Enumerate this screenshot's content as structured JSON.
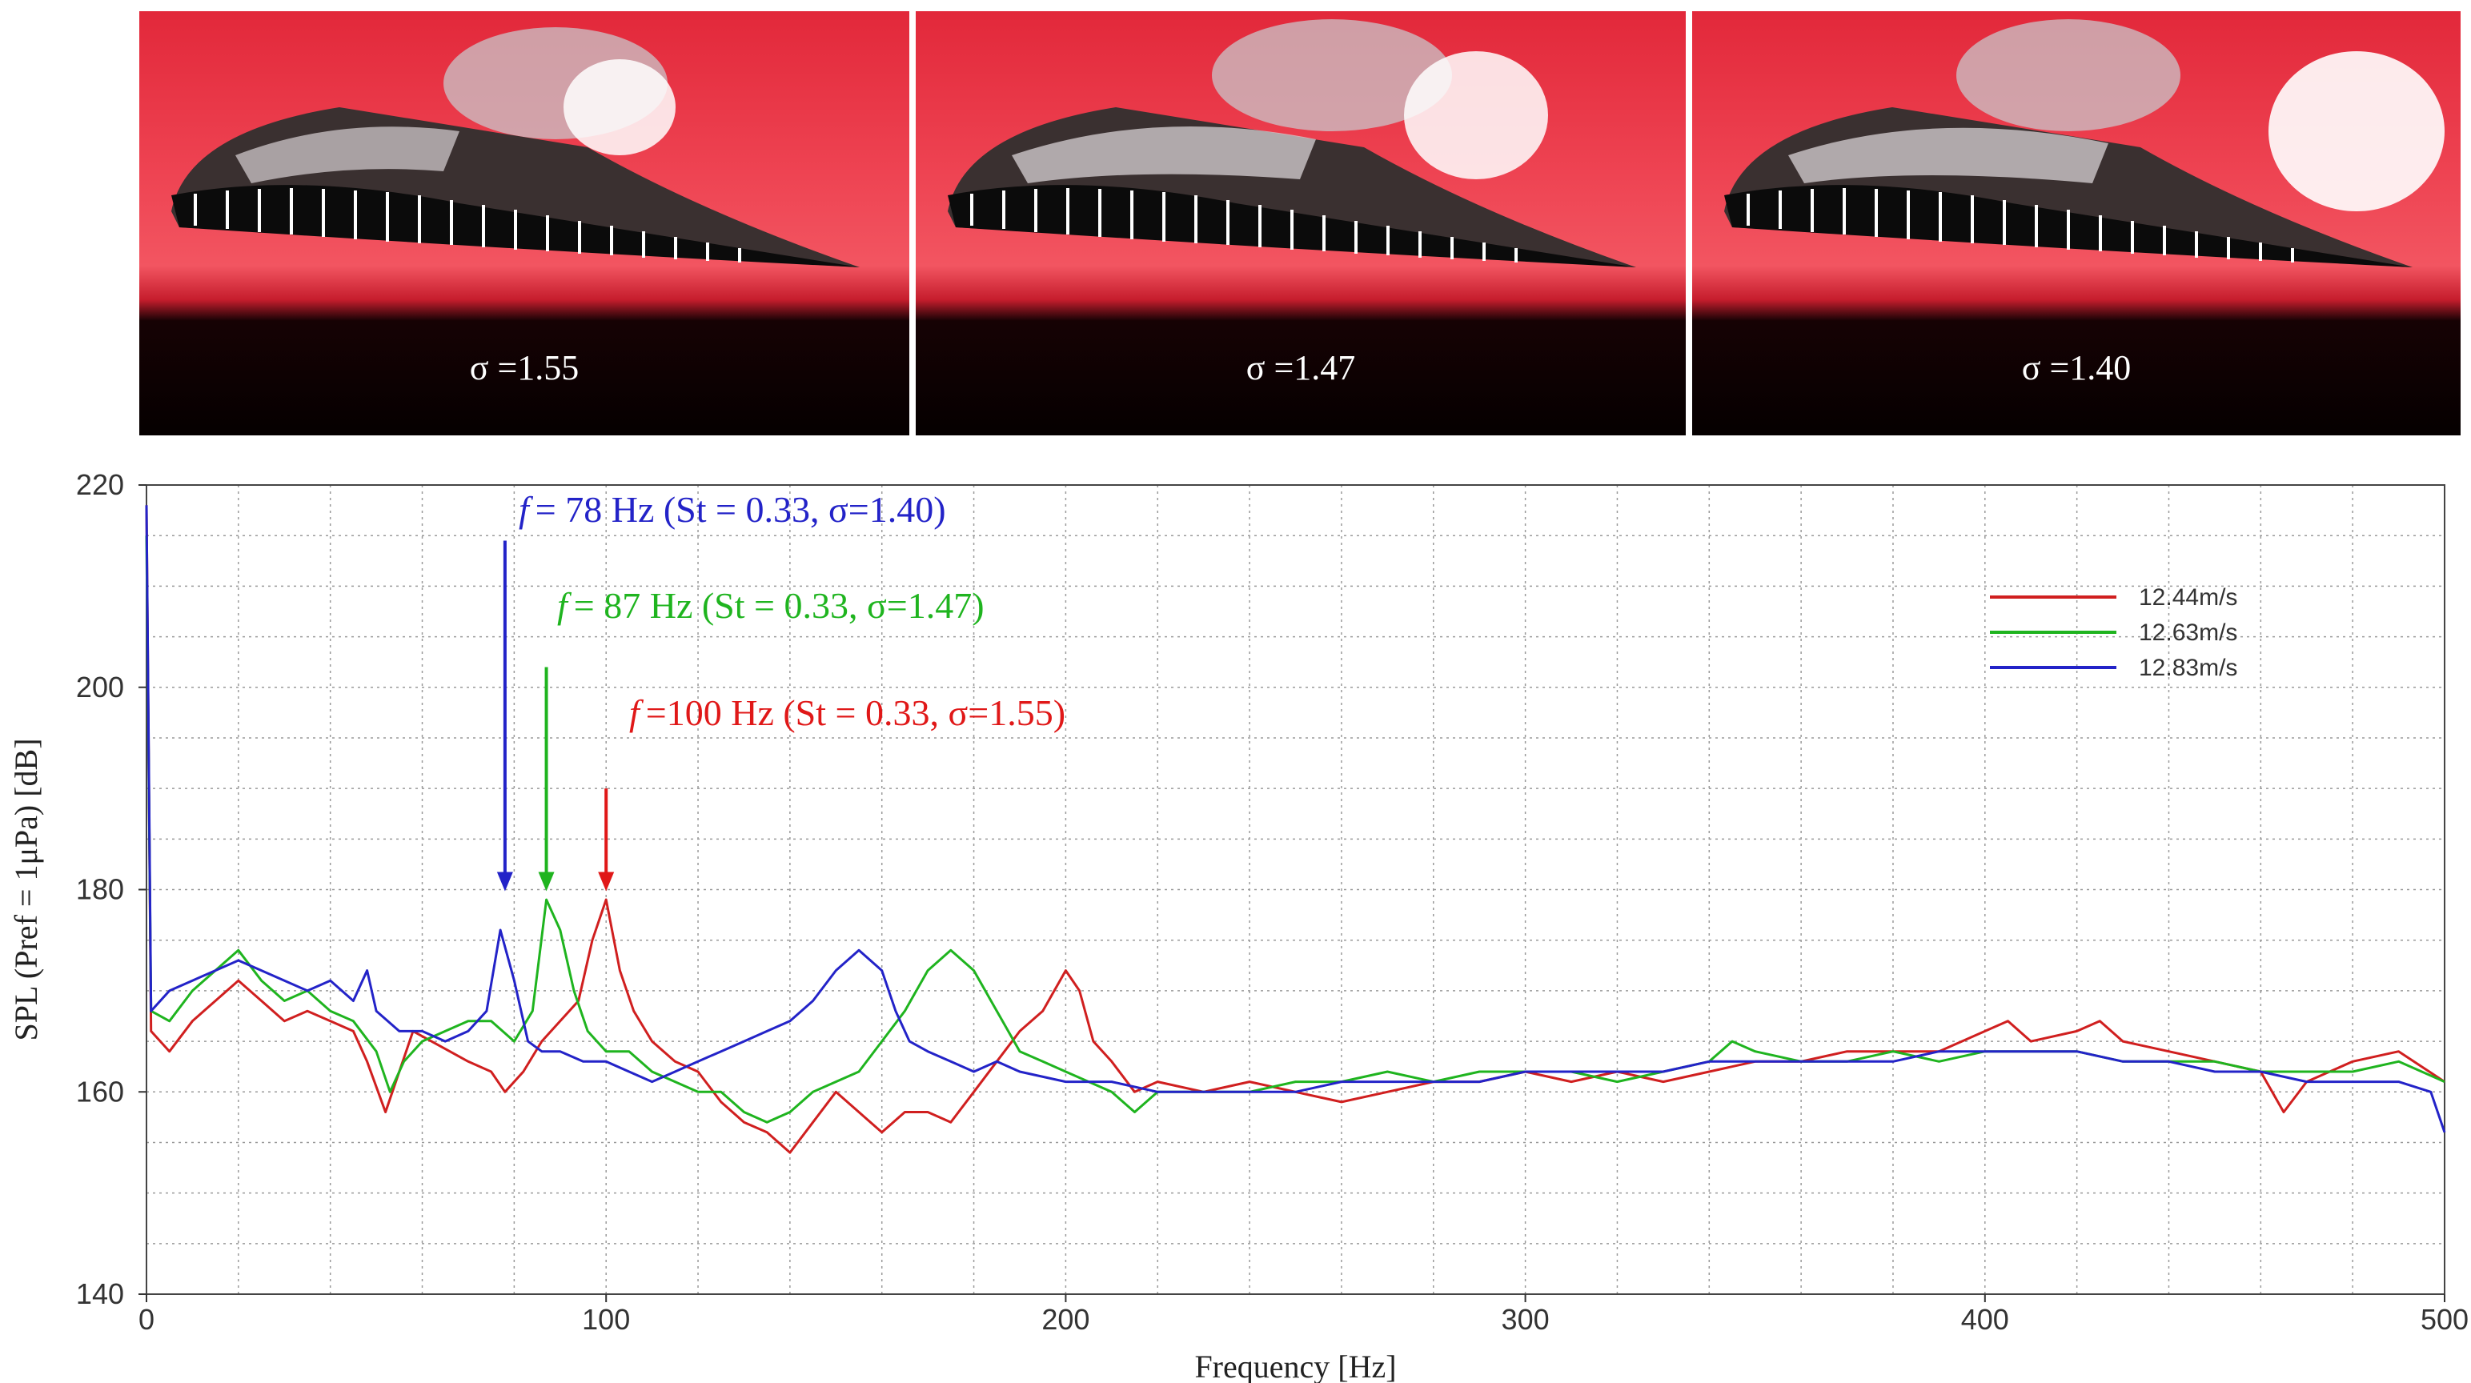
{
  "photos": [
    {
      "label": "σ =1.55"
    },
    {
      "label": "σ =1.47"
    },
    {
      "label": "σ =1.40"
    }
  ],
  "chart_data": {
    "type": "line",
    "xlabel": "Frequency [Hz]",
    "ylabel": "SPL (Pref = 1μPa) [dB]",
    "xlim": [
      0,
      500
    ],
    "ylim": [
      140,
      220
    ],
    "xticks": [
      0,
      100,
      200,
      300,
      400,
      500
    ],
    "yticks": [
      140,
      160,
      180,
      200,
      220
    ],
    "grid": true,
    "legend_position": "top-right",
    "series": [
      {
        "name": "12.44m/s",
        "color": "#d01f1f",
        "points": [
          [
            0,
            218
          ],
          [
            1,
            166
          ],
          [
            5,
            164
          ],
          [
            10,
            167
          ],
          [
            15,
            169
          ],
          [
            20,
            171
          ],
          [
            25,
            169
          ],
          [
            30,
            167
          ],
          [
            35,
            168
          ],
          [
            40,
            167
          ],
          [
            45,
            166
          ],
          [
            48,
            163
          ],
          [
            52,
            158
          ],
          [
            55,
            162
          ],
          [
            58,
            166
          ],
          [
            62,
            165
          ],
          [
            66,
            164
          ],
          [
            70,
            163
          ],
          [
            75,
            162
          ],
          [
            78,
            160
          ],
          [
            82,
            162
          ],
          [
            86,
            165
          ],
          [
            90,
            167
          ],
          [
            94,
            169
          ],
          [
            97,
            175
          ],
          [
            100,
            179
          ],
          [
            103,
            172
          ],
          [
            106,
            168
          ],
          [
            110,
            165
          ],
          [
            115,
            163
          ],
          [
            120,
            162
          ],
          [
            125,
            159
          ],
          [
            130,
            157
          ],
          [
            135,
            156
          ],
          [
            140,
            154
          ],
          [
            145,
            157
          ],
          [
            150,
            160
          ],
          [
            155,
            158
          ],
          [
            160,
            156
          ],
          [
            165,
            158
          ],
          [
            170,
            158
          ],
          [
            175,
            157
          ],
          [
            180,
            160
          ],
          [
            185,
            163
          ],
          [
            190,
            166
          ],
          [
            195,
            168
          ],
          [
            200,
            172
          ],
          [
            203,
            170
          ],
          [
            206,
            165
          ],
          [
            210,
            163
          ],
          [
            215,
            160
          ],
          [
            220,
            161
          ],
          [
            230,
            160
          ],
          [
            240,
            161
          ],
          [
            250,
            160
          ],
          [
            260,
            159
          ],
          [
            270,
            160
          ],
          [
            280,
            161
          ],
          [
            290,
            161
          ],
          [
            300,
            162
          ],
          [
            310,
            161
          ],
          [
            320,
            162
          ],
          [
            330,
            161
          ],
          [
            340,
            162
          ],
          [
            350,
            163
          ],
          [
            360,
            163
          ],
          [
            370,
            164
          ],
          [
            380,
            164
          ],
          [
            390,
            164
          ],
          [
            400,
            166
          ],
          [
            405,
            167
          ],
          [
            410,
            165
          ],
          [
            420,
            166
          ],
          [
            425,
            167
          ],
          [
            430,
            165
          ],
          [
            440,
            164
          ],
          [
            450,
            163
          ],
          [
            460,
            162
          ],
          [
            465,
            158
          ],
          [
            470,
            161
          ],
          [
            480,
            163
          ],
          [
            490,
            164
          ],
          [
            500,
            161
          ]
        ]
      },
      {
        "name": "12.63m/s",
        "color": "#1fb41f",
        "points": [
          [
            0,
            215
          ],
          [
            1,
            168
          ],
          [
            5,
            167
          ],
          [
            10,
            170
          ],
          [
            15,
            172
          ],
          [
            20,
            174
          ],
          [
            25,
            171
          ],
          [
            30,
            169
          ],
          [
            35,
            170
          ],
          [
            40,
            168
          ],
          [
            45,
            167
          ],
          [
            50,
            164
          ],
          [
            53,
            160
          ],
          [
            56,
            163
          ],
          [
            60,
            165
          ],
          [
            65,
            166
          ],
          [
            70,
            167
          ],
          [
            75,
            167
          ],
          [
            80,
            165
          ],
          [
            84,
            168
          ],
          [
            87,
            179
          ],
          [
            90,
            176
          ],
          [
            93,
            170
          ],
          [
            96,
            166
          ],
          [
            100,
            164
          ],
          [
            105,
            164
          ],
          [
            110,
            162
          ],
          [
            115,
            161
          ],
          [
            120,
            160
          ],
          [
            125,
            160
          ],
          [
            130,
            158
          ],
          [
            135,
            157
          ],
          [
            140,
            158
          ],
          [
            145,
            160
          ],
          [
            150,
            161
          ],
          [
            155,
            162
          ],
          [
            160,
            165
          ],
          [
            165,
            168
          ],
          [
            170,
            172
          ],
          [
            175,
            174
          ],
          [
            180,
            172
          ],
          [
            185,
            168
          ],
          [
            190,
            164
          ],
          [
            195,
            163
          ],
          [
            200,
            162
          ],
          [
            205,
            161
          ],
          [
            210,
            160
          ],
          [
            215,
            158
          ],
          [
            220,
            160
          ],
          [
            230,
            160
          ],
          [
            240,
            160
          ],
          [
            250,
            161
          ],
          [
            260,
            161
          ],
          [
            270,
            162
          ],
          [
            280,
            161
          ],
          [
            290,
            162
          ],
          [
            300,
            162
          ],
          [
            310,
            162
          ],
          [
            320,
            161
          ],
          [
            330,
            162
          ],
          [
            340,
            163
          ],
          [
            345,
            165
          ],
          [
            350,
            164
          ],
          [
            360,
            163
          ],
          [
            370,
            163
          ],
          [
            380,
            164
          ],
          [
            390,
            163
          ],
          [
            400,
            164
          ],
          [
            410,
            164
          ],
          [
            420,
            164
          ],
          [
            430,
            163
          ],
          [
            440,
            163
          ],
          [
            450,
            163
          ],
          [
            460,
            162
          ],
          [
            470,
            162
          ],
          [
            480,
            162
          ],
          [
            490,
            163
          ],
          [
            500,
            161
          ]
        ]
      },
      {
        "name": "12.83m/s",
        "color": "#2323c8",
        "points": [
          [
            0,
            218
          ],
          [
            1,
            168
          ],
          [
            5,
            170
          ],
          [
            10,
            171
          ],
          [
            15,
            172
          ],
          [
            20,
            173
          ],
          [
            25,
            172
          ],
          [
            30,
            171
          ],
          [
            35,
            170
          ],
          [
            40,
            171
          ],
          [
            45,
            169
          ],
          [
            48,
            172
          ],
          [
            50,
            168
          ],
          [
            55,
            166
          ],
          [
            60,
            166
          ],
          [
            65,
            165
          ],
          [
            70,
            166
          ],
          [
            74,
            168
          ],
          [
            77,
            176
          ],
          [
            80,
            171
          ],
          [
            83,
            165
          ],
          [
            86,
            164
          ],
          [
            90,
            164
          ],
          [
            95,
            163
          ],
          [
            100,
            163
          ],
          [
            105,
            162
          ],
          [
            110,
            161
          ],
          [
            115,
            162
          ],
          [
            120,
            163
          ],
          [
            125,
            164
          ],
          [
            130,
            165
          ],
          [
            135,
            166
          ],
          [
            140,
            167
          ],
          [
            145,
            169
          ],
          [
            150,
            172
          ],
          [
            155,
            174
          ],
          [
            160,
            172
          ],
          [
            163,
            168
          ],
          [
            166,
            165
          ],
          [
            170,
            164
          ],
          [
            175,
            163
          ],
          [
            180,
            162
          ],
          [
            185,
            163
          ],
          [
            190,
            162
          ],
          [
            200,
            161
          ],
          [
            210,
            161
          ],
          [
            220,
            160
          ],
          [
            230,
            160
          ],
          [
            240,
            160
          ],
          [
            250,
            160
          ],
          [
            260,
            161
          ],
          [
            270,
            161
          ],
          [
            280,
            161
          ],
          [
            290,
            161
          ],
          [
            300,
            162
          ],
          [
            310,
            162
          ],
          [
            320,
            162
          ],
          [
            330,
            162
          ],
          [
            340,
            163
          ],
          [
            350,
            163
          ],
          [
            360,
            163
          ],
          [
            370,
            163
          ],
          [
            380,
            163
          ],
          [
            390,
            164
          ],
          [
            400,
            164
          ],
          [
            410,
            164
          ],
          [
            420,
            164
          ],
          [
            430,
            163
          ],
          [
            440,
            163
          ],
          [
            450,
            162
          ],
          [
            460,
            162
          ],
          [
            470,
            161
          ],
          [
            480,
            161
          ],
          [
            490,
            161
          ],
          [
            497,
            160
          ],
          [
            500,
            156
          ]
        ]
      }
    ],
    "annotations": [
      {
        "f_label": "f",
        "text": "= 78 Hz  (St = 0.33, σ=1.40)",
        "color": "#2323c8",
        "arrow_x": 78,
        "arrow_from_y": 214.5,
        "arrow_to_y": 180
      },
      {
        "f_label": "f",
        "text": "= 87 Hz (St = 0.33, σ=1.47)",
        "color": "#1fb41f",
        "arrow_x": 87,
        "arrow_from_y": 202,
        "arrow_to_y": 180
      },
      {
        "f_label": "f",
        "text": "=100 Hz (St = 0.33, σ=1.55)",
        "color": "#e01818",
        "arrow_x": 100,
        "arrow_from_y": 190,
        "arrow_to_y": 180
      }
    ]
  }
}
